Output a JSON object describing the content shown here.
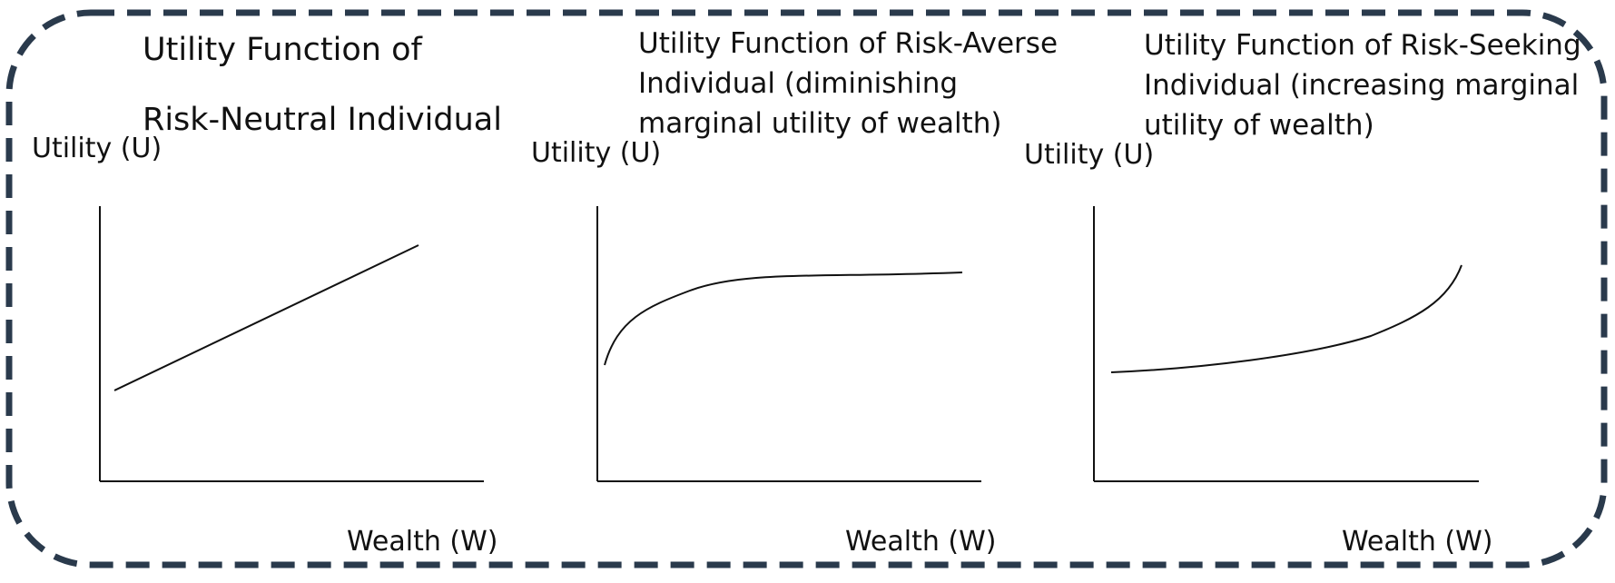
{
  "colors": {
    "border": "#2a3a4c",
    "axis": "#111111",
    "curve": "#111111",
    "text": "#111111"
  },
  "panels": [
    {
      "id": "risk-neutral",
      "title_lines": [
        "Utility Function of",
        "Risk-Neutral Individual"
      ],
      "ylabel": "Utility (U)",
      "xlabel": "Wealth (W)",
      "curve_shape": "linear"
    },
    {
      "id": "risk-averse",
      "title_lines": [
        "Utility Function of Risk-Averse",
        "Individual (diminishing",
        "marginal utility of wealth)"
      ],
      "ylabel": "Utility (U)",
      "xlabel": "Wealth (W)",
      "curve_shape": "concave"
    },
    {
      "id": "risk-seeking",
      "title_lines": [
        "Utility Function of Risk-Seeking",
        "Individual (increasing marginal",
        "utility of wealth)"
      ],
      "ylabel": "Utility (U)",
      "xlabel": "Wealth (W)",
      "curve_shape": "convex"
    }
  ]
}
